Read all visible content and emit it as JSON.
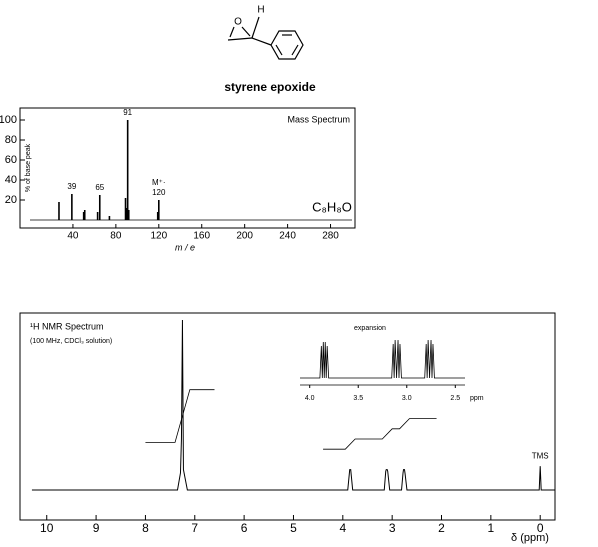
{
  "compound": {
    "name": "styrene epoxide",
    "atoms": [
      "H",
      "O"
    ]
  },
  "chart_data": [
    {
      "type": "bar",
      "title": "Mass Spectrum",
      "formula": "C₈H₈O",
      "xlabel": "m / e",
      "ylabel": "% of base peak",
      "x": [
        27,
        39,
        50,
        51,
        63,
        65,
        74,
        89,
        90,
        91,
        92,
        119,
        120
      ],
      "values": [
        18,
        26,
        8,
        10,
        8,
        25,
        4,
        22,
        12,
        100,
        10,
        8,
        20
      ],
      "color": "#000000",
      "xlim": [
        0,
        300
      ],
      "ylim": [
        0,
        112
      ],
      "xticks": [
        40,
        80,
        120,
        160,
        200,
        240,
        280
      ],
      "yticks": [
        20,
        40,
        60,
        80,
        100
      ],
      "annotations": [
        {
          "text": "39",
          "x": 39
        },
        {
          "text": "65",
          "x": 65
        },
        {
          "text": "91",
          "x": 91
        },
        {
          "text": "120",
          "x": 120
        },
        {
          "text": "M⁺·",
          "x": 120
        }
      ]
    },
    {
      "type": "line",
      "title": "¹H NMR Spectrum",
      "subtitle": "(100 MHz, CDCl₃ solution)",
      "xlabel": "δ (ppm)",
      "x": [
        10.3,
        7.35,
        7.29,
        7.27,
        7.25,
        7.23,
        7.15,
        3.9,
        3.87,
        3.86,
        3.84,
        3.83,
        3.8,
        3.16,
        3.13,
        3.12,
        3.1,
        3.09,
        3.05,
        2.81,
        2.78,
        2.77,
        2.75,
        2.74,
        2.7,
        0.02,
        0,
        -0.02,
        -0.3
      ],
      "values": [
        0,
        0,
        10,
        30,
        100,
        12,
        0,
        0,
        9,
        12,
        12,
        9,
        0,
        0,
        11,
        12,
        12,
        11,
        0,
        0,
        10,
        12,
        12,
        10,
        0,
        0,
        14,
        0,
        0
      ],
      "color": "#000000",
      "xlim": [
        10.4,
        -0.3
      ],
      "xticks": [
        10,
        9,
        8,
        7,
        6,
        5,
        4,
        3,
        2,
        1,
        0
      ],
      "integral": {
        "x": [
          8.0,
          7.4,
          7.1,
          6.6,
          5.5,
          4.4,
          3.95,
          3.75,
          3.2,
          3.0,
          2.85,
          2.65,
          2.1
        ],
        "values": [
          28,
          28,
          59,
          59,
          null,
          24,
          24,
          30,
          30,
          36,
          36,
          42,
          42
        ]
      },
      "annotations": [
        {
          "text": "TMS",
          "x": 0
        }
      ],
      "inset": {
        "title": "expansion",
        "xlabel": "ppm",
        "xlim": [
          4.1,
          2.4
        ],
        "xticks": [
          {
            "value": 4,
            "label": "4.0"
          },
          3.5,
          {
            "value": 3,
            "label": "3.0"
          },
          2.5
        ],
        "x": [
          4.1,
          3.895,
          3.88,
          3.87,
          3.86,
          3.85,
          3.84,
          3.83,
          3.82,
          3.805,
          3.155,
          3.14,
          3.13,
          3.12,
          3.105,
          3.09,
          3.08,
          3.07,
          3.055,
          2.815,
          2.8,
          2.79,
          2.78,
          2.765,
          2.75,
          2.74,
          2.73,
          2.715,
          2.4
        ],
        "values": [
          0,
          0,
          80,
          0,
          90,
          0,
          90,
          0,
          80,
          0,
          0,
          85,
          0,
          95,
          0,
          95,
          0,
          85,
          0,
          0,
          85,
          0,
          95,
          0,
          95,
          0,
          85,
          0,
          0
        ]
      }
    }
  ]
}
